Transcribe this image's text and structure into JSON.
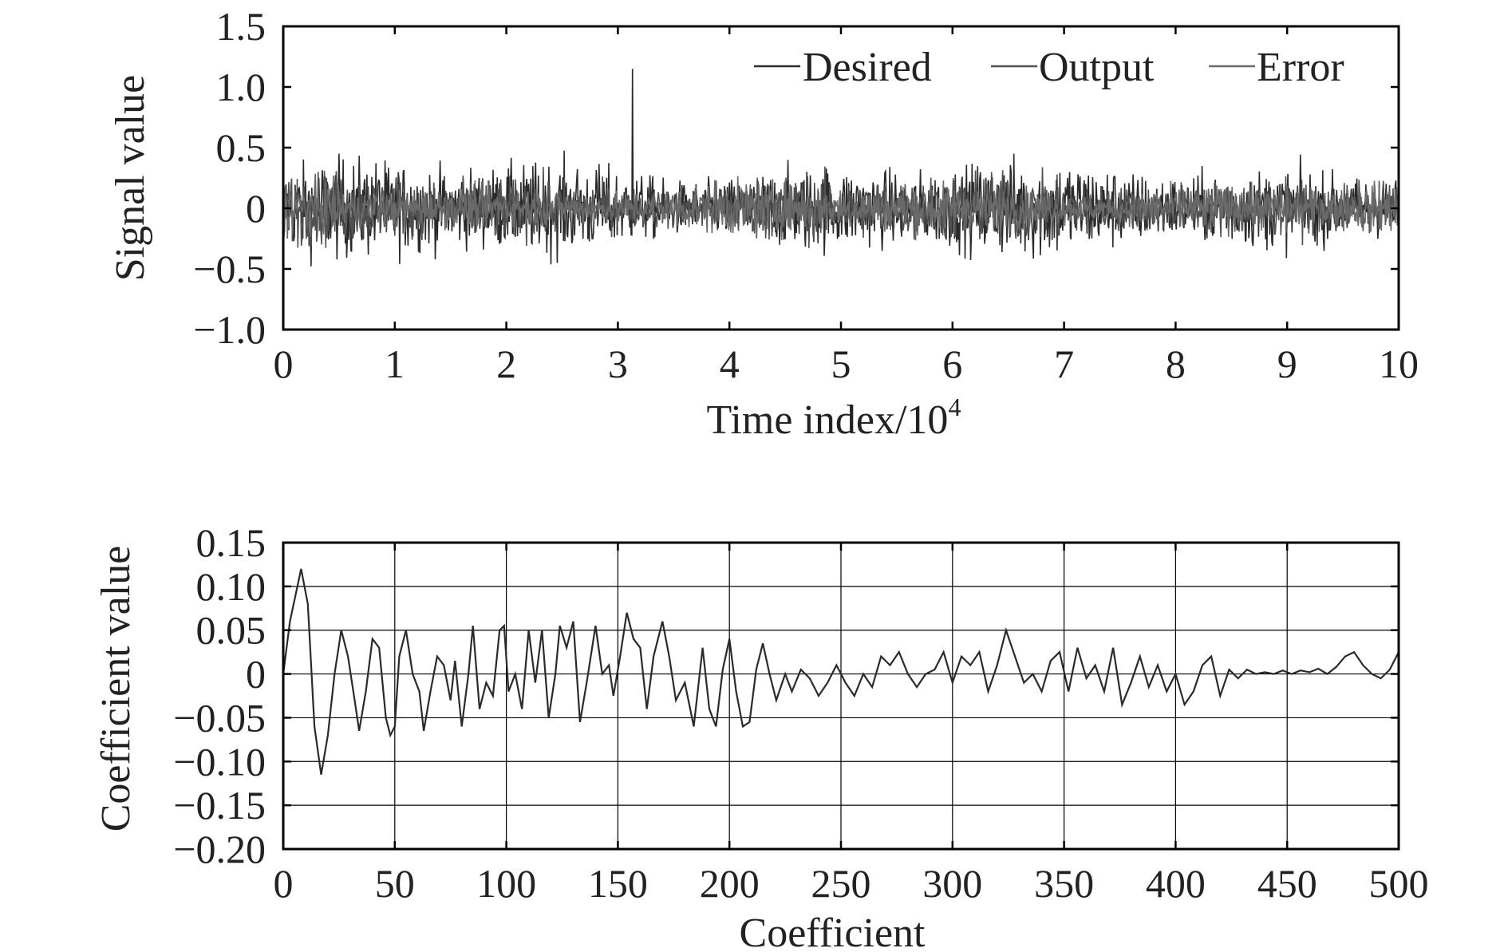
{
  "colors": {
    "desired": "#2a2a2a",
    "output": "#505050",
    "error": "#6a6a6a",
    "coef_line": "#2a2a2a",
    "axis": "#000000",
    "grid": "#000000"
  },
  "chart_data": [
    {
      "type": "line",
      "xlabel": "Time index/10",
      "xlabel_sup": "4",
      "ylabel": "Signal value",
      "xlim": [
        0,
        10
      ],
      "ylim": [
        -1.0,
        1.5
      ],
      "xticks": [
        0,
        1,
        2,
        3,
        4,
        5,
        6,
        7,
        8,
        9,
        10
      ],
      "xtick_labels": [
        "0",
        "1",
        "2",
        "3",
        "4",
        "5",
        "6",
        "7",
        "8",
        "9",
        "10"
      ],
      "yticks": [
        -1.0,
        -0.5,
        0,
        0.5,
        1.0,
        1.5
      ],
      "ytick_labels": [
        "−1.0",
        "−0.5",
        "0",
        "0.5",
        "1.0",
        "1.5"
      ],
      "grid": false,
      "legend_position": "top-right",
      "series": [
        {
          "name": "Desired",
          "amplitude_envelope": 0.55,
          "peak": [
            3.13,
            1.15
          ]
        },
        {
          "name": "Output",
          "amplitude_envelope": 0.4
        },
        {
          "name": "Error",
          "amplitude_envelope": 0.3
        }
      ]
    },
    {
      "type": "line",
      "xlabel": "Coefficient",
      "ylabel": "Coefficient value",
      "xlim": [
        0,
        500
      ],
      "ylim": [
        -0.2,
        0.15
      ],
      "xticks": [
        0,
        50,
        100,
        150,
        200,
        250,
        300,
        350,
        400,
        450,
        500
      ],
      "xtick_labels": [
        "0",
        "50",
        "100",
        "150",
        "200",
        "250",
        "300",
        "350",
        "400",
        "450",
        "500"
      ],
      "yticks": [
        -0.2,
        -0.15,
        -0.1,
        -0.05,
        0,
        0.05,
        0.1,
        0.15
      ],
      "ytick_labels": [
        "−0.20",
        "−0.15",
        "−0.10",
        "−0.05",
        "0",
        "0.05",
        "0.10",
        "0.15"
      ],
      "grid": true,
      "series": [
        {
          "points": [
            [
              0,
              0
            ],
            [
              3,
              0.06
            ],
            [
              8,
              0.12
            ],
            [
              11,
              0.08
            ],
            [
              14,
              -0.06
            ],
            [
              17,
              -0.115
            ],
            [
              20,
              -0.07
            ],
            [
              23,
              0.0
            ],
            [
              26,
              0.05
            ],
            [
              29,
              0.02
            ],
            [
              32,
              -0.03
            ],
            [
              34,
              -0.065
            ],
            [
              37,
              -0.02
            ],
            [
              40,
              0.04
            ],
            [
              43,
              0.03
            ],
            [
              46,
              -0.05
            ],
            [
              48,
              -0.07
            ],
            [
              50,
              -0.06
            ],
            [
              52,
              0.02
            ],
            [
              55,
              0.05
            ],
            [
              58,
              0.0
            ],
            [
              61,
              -0.02
            ],
            [
              63,
              -0.065
            ],
            [
              66,
              -0.02
            ],
            [
              69,
              0.02
            ],
            [
              72,
              0.01
            ],
            [
              75,
              -0.03
            ],
            [
              77,
              0.015
            ],
            [
              80,
              -0.06
            ],
            [
              83,
              0.0
            ],
            [
              85,
              0.055
            ],
            [
              88,
              -0.04
            ],
            [
              91,
              -0.01
            ],
            [
              94,
              -0.025
            ],
            [
              97,
              0.05
            ],
            [
              99,
              0.055
            ],
            [
              101,
              -0.02
            ],
            [
              104,
              0.0
            ],
            [
              107,
              -0.04
            ],
            [
              110,
              0.05
            ],
            [
              113,
              -0.01
            ],
            [
              116,
              0.05
            ],
            [
              119,
              -0.05
            ],
            [
              122,
              0.0
            ],
            [
              124,
              0.055
            ],
            [
              127,
              0.03
            ],
            [
              130,
              0.06
            ],
            [
              133,
              -0.055
            ],
            [
              136,
              -0.01
            ],
            [
              140,
              0.055
            ],
            [
              143,
              0.0
            ],
            [
              146,
              0.01
            ],
            [
              148,
              -0.025
            ],
            [
              151,
              0.02
            ],
            [
              154,
              0.07
            ],
            [
              157,
              0.04
            ],
            [
              160,
              0.03
            ],
            [
              163,
              -0.04
            ],
            [
              166,
              0.02
            ],
            [
              170,
              0.06
            ],
            [
              173,
              0.02
            ],
            [
              176,
              -0.03
            ],
            [
              180,
              -0.01
            ],
            [
              184,
              -0.06
            ],
            [
              188,
              0.03
            ],
            [
              191,
              -0.04
            ],
            [
              194,
              -0.06
            ],
            [
              197,
              0.005
            ],
            [
              200,
              0.04
            ],
            [
              203,
              -0.02
            ],
            [
              206,
              -0.06
            ],
            [
              209,
              -0.055
            ],
            [
              212,
              0.005
            ],
            [
              215,
              0.035
            ],
            [
              218,
              0.0
            ],
            [
              221,
              -0.03
            ],
            [
              225,
              0.0
            ],
            [
              228,
              -0.02
            ],
            [
              232,
              0.005
            ],
            [
              236,
              -0.005
            ],
            [
              240,
              -0.025
            ],
            [
              244,
              -0.01
            ],
            [
              248,
              0.01
            ],
            [
              252,
              -0.01
            ],
            [
              256,
              -0.025
            ],
            [
              260,
              0.0
            ],
            [
              264,
              -0.015
            ],
            [
              268,
              0.02
            ],
            [
              272,
              0.01
            ],
            [
              276,
              0.025
            ],
            [
              280,
              0.0
            ],
            [
              284,
              -0.015
            ],
            [
              288,
              0.0
            ],
            [
              292,
              0.005
            ],
            [
              296,
              0.025
            ],
            [
              300,
              -0.01
            ],
            [
              304,
              0.02
            ],
            [
              308,
              0.01
            ],
            [
              312,
              0.025
            ],
            [
              316,
              -0.02
            ],
            [
              320,
              0.01
            ],
            [
              324,
              0.05
            ],
            [
              328,
              0.02
            ],
            [
              332,
              -0.01
            ],
            [
              336,
              0.0
            ],
            [
              340,
              -0.02
            ],
            [
              344,
              0.015
            ],
            [
              348,
              0.025
            ],
            [
              352,
              -0.02
            ],
            [
              356,
              0.03
            ],
            [
              360,
              -0.005
            ],
            [
              364,
              0.01
            ],
            [
              368,
              -0.02
            ],
            [
              372,
              0.03
            ],
            [
              376,
              -0.035
            ],
            [
              380,
              -0.01
            ],
            [
              384,
              0.02
            ],
            [
              388,
              -0.015
            ],
            [
              392,
              0.01
            ],
            [
              396,
              -0.02
            ],
            [
              400,
              0.0
            ],
            [
              404,
              -0.035
            ],
            [
              408,
              -0.02
            ],
            [
              412,
              0.01
            ],
            [
              416,
              0.02
            ],
            [
              420,
              -0.025
            ],
            [
              424,
              0.005
            ],
            [
              428,
              -0.005
            ],
            [
              432,
              0.005
            ],
            [
              436,
              0.0
            ],
            [
              440,
              0.002
            ],
            [
              444,
              0.0
            ],
            [
              448,
              0.004
            ],
            [
              452,
              0.0
            ],
            [
              456,
              0.004
            ],
            [
              460,
              0.002
            ],
            [
              464,
              0.006
            ],
            [
              468,
              0.0
            ],
            [
              472,
              0.008
            ],
            [
              476,
              0.02
            ],
            [
              480,
              0.025
            ],
            [
              484,
              0.01
            ],
            [
              488,
              0.0
            ],
            [
              492,
              -0.005
            ],
            [
              496,
              0.005
            ],
            [
              500,
              0.025
            ]
          ]
        }
      ]
    }
  ]
}
